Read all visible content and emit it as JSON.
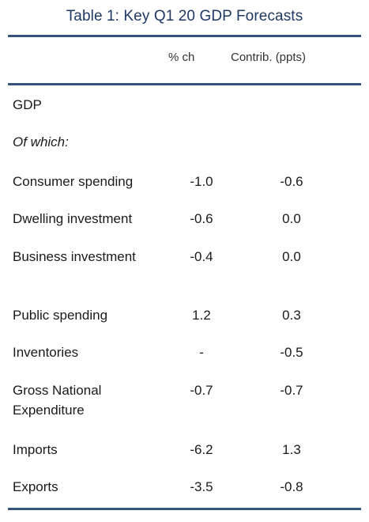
{
  "title": "Table 1: Key Q1 20 GDP Forecasts",
  "columns": {
    "pct_change": "% ch",
    "contribution": "Contrib. (ppts)"
  },
  "rows": [
    {
      "label": "GDP",
      "pct": "",
      "contrib": ""
    },
    {
      "label": "Of which:",
      "pct": "",
      "contrib": ""
    },
    {
      "label": "Consumer spending",
      "pct": "-1.0",
      "contrib": "-0.6"
    },
    {
      "label": "Dwelling investment",
      "pct": "-0.6",
      "contrib": "0.0"
    },
    {
      "label": "Business investment",
      "pct": "-0.4",
      "contrib": "0.0"
    },
    {
      "label": "Public spending",
      "pct": "1.2",
      "contrib": "0.3"
    },
    {
      "label": "Inventories",
      "pct": "-",
      "contrib": "-0.5"
    },
    {
      "label": "Gross National Expenditure",
      "pct": "-0.7",
      "contrib": "-0.7"
    },
    {
      "label": "Imports",
      "pct": "-6.2",
      "contrib": "1.3"
    },
    {
      "label": "Exports",
      "pct": "-3.5",
      "contrib": "-0.8"
    }
  ]
}
